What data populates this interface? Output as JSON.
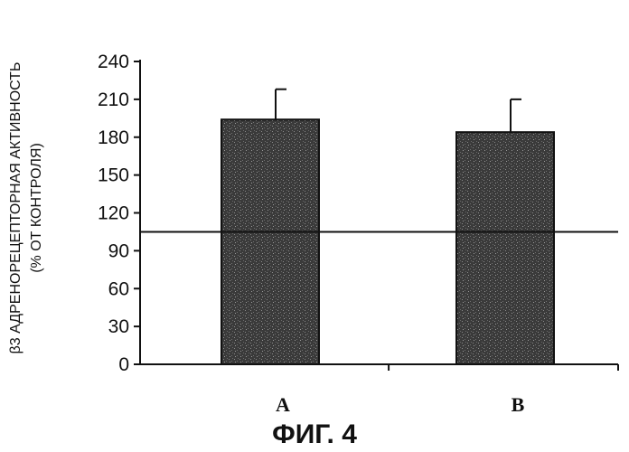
{
  "chart_data": {
    "type": "bar",
    "categories": [
      "A",
      "B"
    ],
    "values": [
      194,
      184
    ],
    "errors": [
      24,
      26
    ],
    "reference_line": 105,
    "ylim": [
      0,
      240
    ],
    "yticks": [
      0,
      30,
      60,
      90,
      120,
      150,
      180,
      210,
      240
    ],
    "ylabel_line1": "β3 АДРЕНОРЕЦЕПТОРНАЯ АКТИВНОСТЬ",
    "ylabel_line2": "(% ОТ КОНТРОЛЯ)",
    "xlabel": "",
    "title": "",
    "caption": "ФИГ. 4",
    "grid": false,
    "bar_fill": "#3a3a3a"
  }
}
